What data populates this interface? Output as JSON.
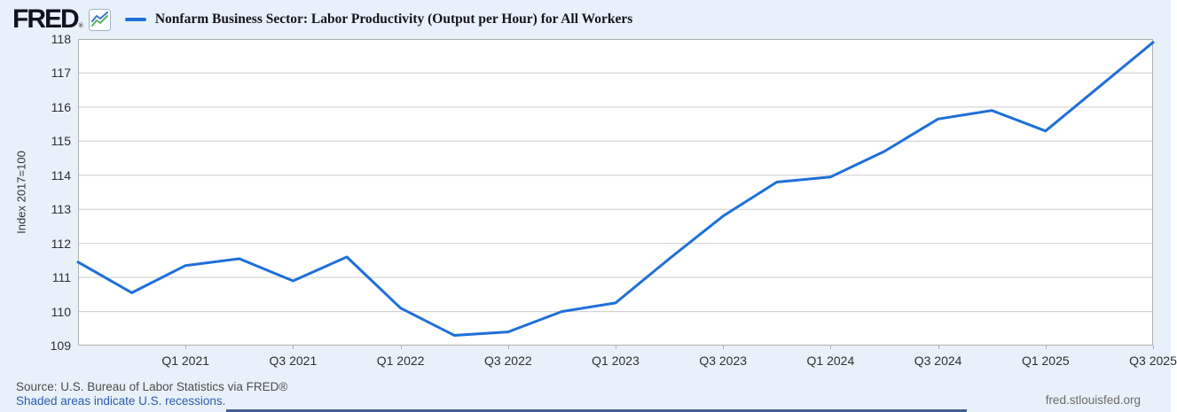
{
  "header": {
    "logo_text": "FRED",
    "logo_registered": "®"
  },
  "chart_data": {
    "type": "line",
    "title": "Nonfarm Business Sector: Labor Productivity (Output per Hour) for All Workers",
    "ylabel": "Index 2017=100",
    "ylim": [
      109,
      118
    ],
    "yticks": [
      109,
      110,
      111,
      112,
      113,
      114,
      115,
      116,
      117,
      118
    ],
    "x": [
      "Q3 2020",
      "Q4 2020",
      "Q1 2021",
      "Q2 2021",
      "Q3 2021",
      "Q4 2021",
      "Q1 2022",
      "Q2 2022",
      "Q3 2022",
      "Q4 2022",
      "Q1 2023",
      "Q2 2023",
      "Q3 2023",
      "Q4 2023",
      "Q1 2024",
      "Q2 2024",
      "Q3 2024",
      "Q4 2024",
      "Q1 2025",
      "Q2 2025",
      "Q3 2025"
    ],
    "series": [
      {
        "name": "Nonfarm Business Sector: Labor Productivity (Output per Hour) for All Workers",
        "values": [
          111.45,
          110.55,
          111.35,
          111.55,
          110.9,
          111.6,
          110.1,
          109.3,
          109.4,
          110.0,
          110.25,
          111.55,
          112.8,
          113.8,
          113.95,
          114.7,
          115.65,
          115.9,
          115.3,
          116.6,
          117.9
        ]
      }
    ],
    "xticks": [
      {
        "label": "Q1 2021",
        "index": 2
      },
      {
        "label": "Q3 2021",
        "index": 4
      },
      {
        "label": "Q1 2022",
        "index": 6
      },
      {
        "label": "Q3 2022",
        "index": 8
      },
      {
        "label": "Q1 2023",
        "index": 10
      },
      {
        "label": "Q3 2023",
        "index": 12
      },
      {
        "label": "Q1 2024",
        "index": 14
      },
      {
        "label": "Q3 2024",
        "index": 16
      },
      {
        "label": "Q1 2025",
        "index": 18
      },
      {
        "label": "Q3 2025",
        "index": 20
      }
    ],
    "line_color": "#1e6fd9",
    "grid": true,
    "legend_position": "top-left"
  },
  "footer": {
    "source": "Source: U.S. Bureau of Labor Statistics via FRED®",
    "recession_note": "Shaded areas indicate U.S. recessions.",
    "site": "fred.stlouisfed.org"
  },
  "colors": {
    "page_background": "#e8f1f9",
    "plot_background": "#ffffff",
    "gridline": "#cccccc",
    "plot_border": "#b0b0b0",
    "line": "#1e6fd9",
    "link": "#2a5db0",
    "footer_bar": "#41608e"
  }
}
